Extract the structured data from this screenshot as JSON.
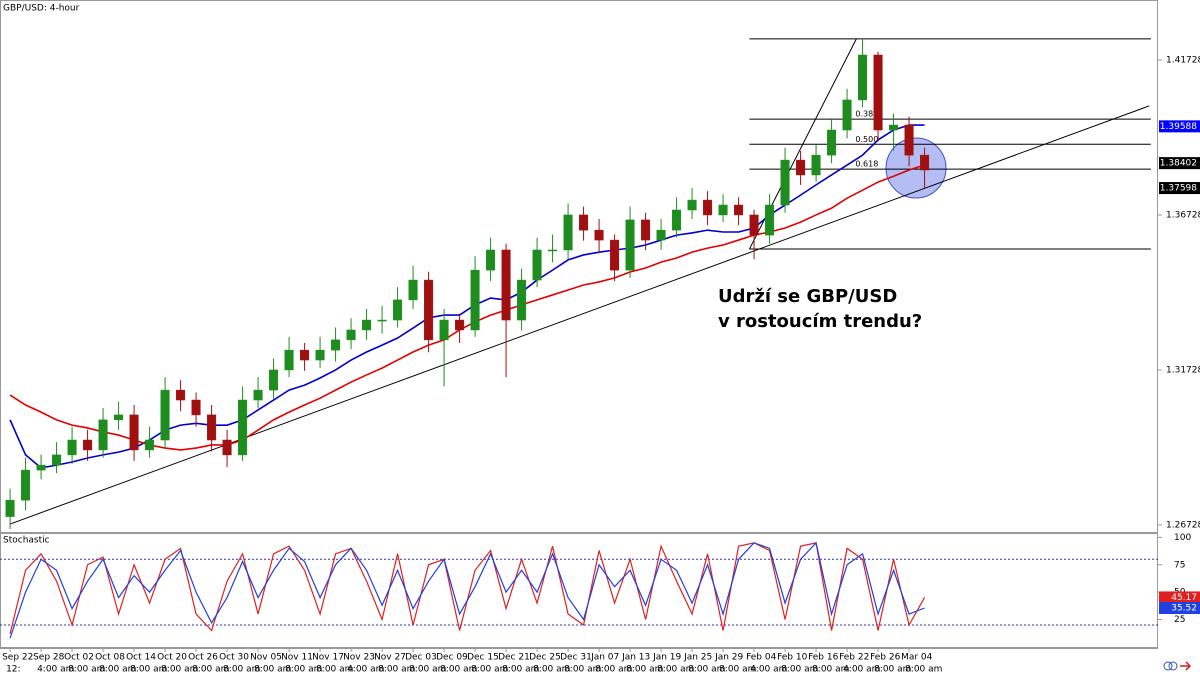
{
  "chart_data": [
    {
      "type": "candlestick",
      "title": "GBP/USD: 4-hour",
      "annotation": [
        "Udrží se GBP/USD",
        "v rostoucím trendu?"
      ],
      "xlim": [
        -0.65,
        74.06
      ],
      "xticks": [
        {
          "value": 0,
          "label": "Sep 22"
        },
        {
          "value": 2,
          "label": "Sep 28"
        },
        {
          "value": 4,
          "label": "Oct 02"
        },
        {
          "value": 6,
          "label": "Oct 08"
        },
        {
          "value": 8,
          "label": "Oct 14"
        },
        {
          "value": 10,
          "label": "Oct 20"
        },
        {
          "value": 12,
          "label": "Oct 26"
        },
        {
          "value": 14,
          "label": "Oct 30"
        },
        {
          "value": 16,
          "label": "Nov 05"
        },
        {
          "value": 18,
          "label": "Nov 11"
        },
        {
          "value": 20,
          "label": "Nov 17"
        },
        {
          "value": 22,
          "label": "Nov 23"
        },
        {
          "value": 24,
          "label": "Nov 27"
        },
        {
          "value": 26,
          "label": "Dec 03"
        },
        {
          "value": 28,
          "label": "Dec 09"
        },
        {
          "value": 30,
          "label": "Dec 15"
        },
        {
          "value": 32,
          "label": "Dec 21"
        },
        {
          "value": 34,
          "label": "Dec 25"
        },
        {
          "value": 36,
          "label": "Dec 31"
        },
        {
          "value": 38,
          "label": "Jan 07"
        },
        {
          "value": 40,
          "label": "Jan 13"
        },
        {
          "value": 42,
          "label": "Jan 19"
        },
        {
          "value": 44,
          "label": "Jan 25"
        },
        {
          "value": 46,
          "label": "Jan 29"
        },
        {
          "value": 48,
          "label": "Feb 04"
        },
        {
          "value": 50,
          "label": "Feb 10"
        },
        {
          "value": 52,
          "label": "Feb 16"
        },
        {
          "value": 54,
          "label": "Feb 22"
        },
        {
          "value": 56,
          "label": "Feb 26"
        },
        {
          "value": 58,
          "label": "Mar 04"
        }
      ],
      "x_sublabels": [
        "12:",
        "4:00 am",
        "8:00 am",
        "8:00 am",
        "8:00 am",
        "8:00 am",
        "8:00 am",
        "8:00 am",
        "8:00 am",
        "8:00 am",
        "8:00 am",
        "4:00 am",
        "8:00 am",
        "8:00 am",
        "8:00 am",
        "8:00 am",
        "8:00 am",
        "8:00 am",
        "8:00 am",
        "8:00 am",
        "8:00 am",
        "8:00 am",
        "8:00 am",
        "8:00 am",
        "4:00 am",
        "8:00 am",
        "8:00 am",
        "4:00 am",
        "8:00 am",
        "8:00 am"
      ],
      "ylim": [
        1.26503,
        1.43664
      ],
      "yticks": [
        1.26728,
        1.31728,
        1.36728,
        1.41728
      ],
      "up_color": "#1e8c1e",
      "down_color": "#a01010",
      "ohlc": [
        [
          1.27,
          1.279,
          1.266,
          1.2753
        ],
        [
          1.2753,
          1.289,
          1.272,
          1.285
        ],
        [
          1.285,
          1.29,
          1.282,
          1.2866
        ],
        [
          1.2866,
          1.294,
          1.284,
          1.2899
        ],
        [
          1.2899,
          1.299,
          1.287,
          1.2947
        ],
        [
          1.2947,
          1.298,
          1.288,
          1.2915
        ],
        [
          1.2915,
          1.305,
          1.289,
          1.3012
        ],
        [
          1.3012,
          1.307,
          1.298,
          1.3028
        ],
        [
          1.3028,
          1.306,
          1.288,
          1.2915
        ],
        [
          1.2915,
          1.299,
          1.289,
          1.2947
        ],
        [
          1.2947,
          1.315,
          1.292,
          1.3108
        ],
        [
          1.3108,
          1.314,
          1.304,
          1.3076
        ],
        [
          1.3076,
          1.31,
          1.299,
          1.3028
        ],
        [
          1.3028,
          1.306,
          1.291,
          1.2947
        ],
        [
          1.2947,
          1.298,
          1.286,
          1.2899
        ],
        [
          1.2899,
          1.312,
          1.288,
          1.3076
        ],
        [
          1.3076,
          1.315,
          1.305,
          1.3108
        ],
        [
          1.3108,
          1.321,
          1.308,
          1.3173
        ],
        [
          1.3173,
          1.328,
          1.315,
          1.3237
        ],
        [
          1.3237,
          1.326,
          1.317,
          1.3205
        ],
        [
          1.3205,
          1.328,
          1.318,
          1.3237
        ],
        [
          1.3237,
          1.331,
          1.32,
          1.327
        ],
        [
          1.327,
          1.334,
          1.324,
          1.3302
        ],
        [
          1.3302,
          1.337,
          1.327,
          1.3334
        ],
        [
          1.3334,
          1.338,
          1.329,
          1.3334
        ],
        [
          1.3334,
          1.344,
          1.331,
          1.3399
        ],
        [
          1.3399,
          1.351,
          1.337,
          1.3463
        ],
        [
          1.3463,
          1.349,
          1.323,
          1.327
        ],
        [
          1.327,
          1.337,
          1.312,
          1.3334
        ],
        [
          1.3334,
          1.335,
          1.326,
          1.3302
        ],
        [
          1.3302,
          1.354,
          1.328,
          1.3495
        ],
        [
          1.3495,
          1.36,
          1.346,
          1.356
        ],
        [
          1.356,
          1.358,
          1.315,
          1.3334
        ],
        [
          1.3334,
          1.35,
          1.33,
          1.3463
        ],
        [
          1.3463,
          1.36,
          1.344,
          1.356
        ],
        [
          1.356,
          1.361,
          1.352,
          1.356
        ],
        [
          1.356,
          1.371,
          1.353,
          1.3673
        ],
        [
          1.3673,
          1.37,
          1.359,
          1.3624
        ],
        [
          1.3624,
          1.366,
          1.355,
          1.3592
        ],
        [
          1.3592,
          1.361,
          1.346,
          1.3495
        ],
        [
          1.3495,
          1.37,
          1.347,
          1.3657
        ],
        [
          1.3657,
          1.368,
          1.356,
          1.3592
        ],
        [
          1.3592,
          1.366,
          1.356,
          1.3624
        ],
        [
          1.3624,
          1.373,
          1.36,
          1.3689
        ],
        [
          1.3689,
          1.376,
          1.366,
          1.3721
        ],
        [
          1.3721,
          1.375,
          1.364,
          1.3673
        ],
        [
          1.3673,
          1.374,
          1.365,
          1.3705
        ],
        [
          1.3705,
          1.373,
          1.364,
          1.3673
        ],
        [
          1.3673,
          1.369,
          1.353,
          1.3608
        ],
        [
          1.3608,
          1.374,
          1.358,
          1.3705
        ],
        [
          1.3705,
          1.389,
          1.368,
          1.385
        ],
        [
          1.385,
          1.388,
          1.377,
          1.3802
        ],
        [
          1.3802,
          1.39,
          1.378,
          1.3866
        ],
        [
          1.3866,
          1.398,
          1.384,
          1.3947
        ],
        [
          1.3947,
          1.408,
          1.392,
          1.4044
        ],
        [
          1.4044,
          1.424,
          1.402,
          1.4189
        ],
        [
          1.4189,
          1.42,
          1.391,
          1.3947
        ],
        [
          1.3947,
          1.4,
          1.388,
          1.3963
        ],
        [
          1.3963,
          1.399,
          1.383,
          1.3866
        ],
        [
          1.3866,
          1.389,
          1.376,
          1.3818
        ]
      ],
      "overlays": [
        {
          "color": "#0000cc",
          "values": [
            1.3012,
            1.2899,
            1.2857,
            1.2866,
            1.2876,
            1.2889,
            1.2899,
            1.2908,
            1.2921,
            1.2947,
            1.2979,
            1.2995,
            1.3001,
            1.2995,
            1.2995,
            1.3012,
            1.3044,
            1.3076,
            1.3108,
            1.3124,
            1.3147,
            1.3173,
            1.3205,
            1.3231,
            1.3253,
            1.3276,
            1.3308,
            1.3341,
            1.335,
            1.335,
            1.3383,
            1.3405,
            1.3399,
            1.3424,
            1.3463,
            1.3495,
            1.3528,
            1.3544,
            1.3553,
            1.356,
            1.3566,
            1.3576,
            1.3592,
            1.3608,
            1.3615,
            1.3624,
            1.3618,
            1.3618,
            1.3631,
            1.3673,
            1.3705,
            1.3737,
            1.377,
            1.3802,
            1.3834,
            1.3866,
            1.3915,
            1.3947,
            1.3963,
            1.3963
          ]
        },
        {
          "color": "#e00000",
          "values": [
            1.3092,
            1.306,
            1.3037,
            1.3012,
            1.2995,
            1.2986,
            1.2973,
            1.2963,
            1.2947,
            1.2931,
            1.2921,
            1.2915,
            1.2921,
            1.2931,
            1.2931,
            1.2947,
            1.2979,
            1.3012,
            1.3037,
            1.306,
            1.3082,
            1.3108,
            1.3134,
            1.3157,
            1.3179,
            1.3205,
            1.3231,
            1.3253,
            1.327,
            1.3302,
            1.3328,
            1.335,
            1.3366,
            1.3383,
            1.3399,
            1.3415,
            1.3431,
            1.3447,
            1.3457,
            1.347,
            1.3489,
            1.3502,
            1.3521,
            1.3534,
            1.3553,
            1.3566,
            1.3576,
            1.3592,
            1.3608,
            1.3618,
            1.3631,
            1.365,
            1.3673,
            1.3695,
            1.3727,
            1.3753,
            1.3779,
            1.3798,
            1.3818,
            1.3834
          ]
        }
      ],
      "trendlines": [
        {
          "x": [
            0,
            73.5
          ],
          "y": [
            1.2676,
            1.4025
          ]
        },
        {
          "x": [
            47.7,
            54.6
          ],
          "y": [
            1.3563,
            1.4241
          ]
        }
      ],
      "fib": {
        "x": [
          47.7,
          73.6
        ],
        "levels": [
          1.4241,
          {
            "value": 1.3982,
            "label": "0.382"
          },
          {
            "value": 1.3901,
            "label": "0.500"
          },
          {
            "value": 1.3821,
            "label": "0.618"
          },
          1.3563
        ]
      },
      "price_labels": [
        {
          "value": 1.39588,
          "color": "#0000ff"
        },
        {
          "value": 1.38402,
          "color": "#000000"
        },
        {
          "value": 1.37598,
          "color": "#000000"
        }
      ]
    },
    {
      "type": "stochastic",
      "title": "Stochastic",
      "ylim": [
        -1,
        104
      ],
      "yticks": [
        25,
        50,
        75,
        100
      ],
      "levels": [
        20,
        80
      ],
      "level_color": "#3030c0",
      "series": [
        {
          "color": "#e02020",
          "values": [
            12,
            70,
            85,
            60,
            20,
            75,
            82,
            30,
            75,
            40,
            80,
            90,
            30,
            15,
            60,
            85,
            30,
            85,
            92,
            70,
            30,
            85,
            90,
            60,
            25,
            85,
            20,
            75,
            80,
            15,
            70,
            88,
            35,
            80,
            40,
            92,
            30,
            20,
            88,
            40,
            80,
            25,
            92,
            60,
            30,
            85,
            15,
            92,
            95,
            88,
            25,
            92,
            95,
            15,
            90,
            80,
            15,
            80,
            20,
            45.17
          ]
        },
        {
          "color": "#2040e0",
          "values": [
            8,
            50,
            80,
            70,
            35,
            60,
            80,
            45,
            65,
            50,
            70,
            88,
            50,
            22,
            45,
            78,
            45,
            70,
            90,
            78,
            45,
            75,
            90,
            70,
            38,
            70,
            35,
            60,
            80,
            30,
            55,
            85,
            50,
            70,
            50,
            85,
            45,
            25,
            75,
            55,
            70,
            38,
            80,
            70,
            40,
            75,
            30,
            80,
            95,
            90,
            40,
            80,
            95,
            30,
            75,
            85,
            30,
            70,
            30,
            35.52
          ]
        }
      ]
    }
  ]
}
